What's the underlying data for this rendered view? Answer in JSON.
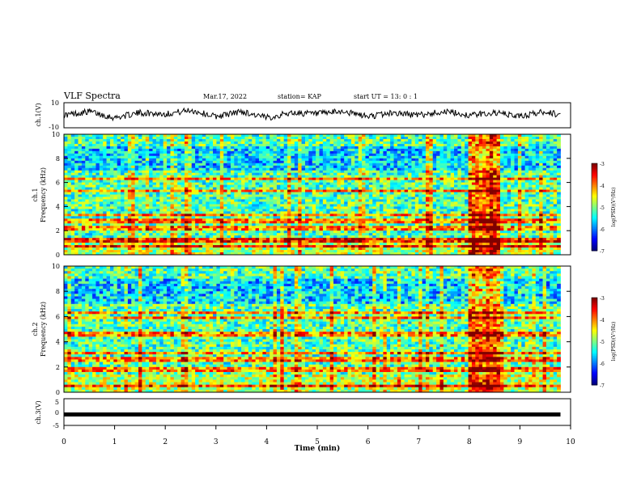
{
  "header": {
    "title": "VLF Spectra",
    "date": "Mar.17, 2022",
    "station": "station= KAP",
    "start": "start  UT =   13: 0  : 1"
  },
  "colorbar": {
    "ticks": [
      "-3",
      "-4",
      "-5",
      "-6",
      "-7"
    ],
    "label": "log(PSD)(V²/Hz)"
  },
  "chart_data": [
    {
      "type": "line",
      "name": "ch1-waveform",
      "ylabel": "ch.1(V)",
      "ylim": [
        -10,
        10
      ],
      "yticks": [
        "10",
        "-10"
      ],
      "xlim": [
        0,
        10
      ],
      "description_points": "noisy waveform oscillating roughly between -4 and +5 V",
      "x": [
        0,
        0.5,
        1,
        1.5,
        2,
        2.5,
        3,
        3.5,
        4,
        4.5,
        5,
        5.5,
        6,
        6.5,
        7,
        7.5,
        8,
        8.5,
        9,
        9.5,
        9.8
      ],
      "y": [
        0,
        3,
        -2,
        2,
        1,
        4,
        -1,
        3,
        -2,
        2,
        1,
        3,
        -1,
        2,
        0,
        3,
        0,
        2,
        -1,
        3,
        0
      ]
    },
    {
      "type": "heatmap",
      "name": "ch1-spectrogram",
      "ylabel": "ch.1",
      "ylabel2": "Frequency (kHz)",
      "ylim": [
        0,
        10
      ],
      "yticks": [
        "0",
        "2",
        "4",
        "6",
        "8",
        "10"
      ],
      "xlim": [
        0,
        9.8
      ],
      "zlim": [
        -7,
        -3
      ],
      "strong_lines_khz": [
        0.7,
        1.2,
        2.2,
        2.8,
        3.3,
        5.3,
        6.3
      ],
      "weak_band_khz": [
        7.0,
        9.0
      ],
      "burst_window_min": [
        8.0,
        8.6
      ]
    },
    {
      "type": "heatmap",
      "name": "ch2-spectrogram",
      "ylabel": "ch.2",
      "ylabel2": "Frequency (kHz)",
      "ylim": [
        0,
        10
      ],
      "yticks": [
        "0",
        "2",
        "4",
        "6",
        "8",
        "10"
      ],
      "xlim": [
        0,
        9.8
      ],
      "zlim": [
        -7,
        -3
      ],
      "strong_lines_khz": [
        0.5,
        1.8,
        2.6,
        3.1,
        4.6,
        5.9,
        6.3
      ],
      "weak_band_khz": [
        7.0,
        9.0
      ],
      "burst_window_min": [
        8.0,
        8.6
      ]
    },
    {
      "type": "line",
      "name": "ch3-waveform",
      "ylabel": "ch.3(V)",
      "ylim": [
        -5,
        5
      ],
      "yticks": [
        "5",
        "0",
        "-5"
      ],
      "xlim": [
        0,
        10
      ],
      "xlabel": "Time (min)",
      "xticks": [
        "0",
        "1",
        "2",
        "3",
        "4",
        "5",
        "6",
        "7",
        "8",
        "9",
        "10"
      ],
      "level": -0.9
    }
  ]
}
